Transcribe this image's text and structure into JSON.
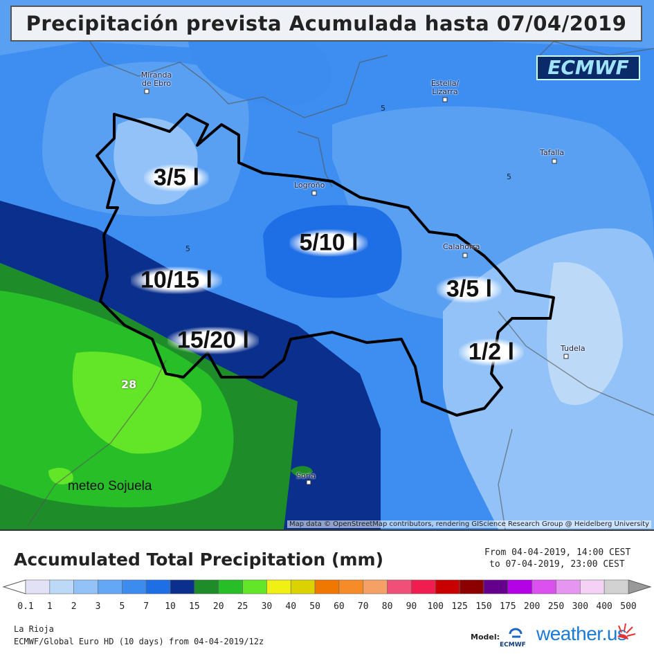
{
  "header": {
    "title": "Precipitación prevista Acumulada hasta 07/04/2019",
    "badge": "ECMWF"
  },
  "map": {
    "places": [
      "Miranda de Ebro",
      "Estella/ Lizarra",
      "Tafalla",
      "Logroño",
      "Calahorra",
      "Tudela",
      "Soria"
    ],
    "contour_labels": [
      "5",
      "5",
      "5",
      "28"
    ],
    "amounts": [
      "3/5 l",
      "5/10 l",
      "10/15 l",
      "15/20 l",
      "3/5 l",
      "1/2 l"
    ],
    "watermark": "meteo Sojuela",
    "attribution": "Map data © OpenStreetMap contributors, rendering GIScience Research Group @ Heidelberg University"
  },
  "legend": {
    "title": "Accumulated Total Precipitation (mm)",
    "period": [
      "From 04-04-2019, 14:00 CEST",
      "to 07-04-2019, 23:00 CEST"
    ],
    "ticks": [
      0.1,
      1,
      2,
      3,
      5,
      7,
      10,
      15,
      20,
      25,
      30,
      40,
      50,
      60,
      70,
      80,
      90,
      100,
      125,
      150,
      175,
      200,
      250,
      300,
      400,
      500
    ],
    "colors": [
      "#e2e2f6",
      "#bcdaf8",
      "#92c2f8",
      "#64a8f5",
      "#3c8cf0",
      "#1e6ee6",
      "#0a2f8c",
      "#1e8c28",
      "#28be28",
      "#64e628",
      "#f0f014",
      "#dcd200",
      "#f07800",
      "#f58c28",
      "#f5a064",
      "#f05078",
      "#f01e50",
      "#c80000",
      "#8c0000",
      "#64008c",
      "#b400e6",
      "#dc50f0",
      "#e696f0",
      "#f5d2f5",
      "#d2d2d2"
    ]
  },
  "footer": {
    "region": "La Rioja",
    "model_run": "ECMWF/Global Euro HD (10 days) from 04-04-2019/12z",
    "model_label": "Model:",
    "model_logo": "ECMWF",
    "brand": "weather.us"
  }
}
